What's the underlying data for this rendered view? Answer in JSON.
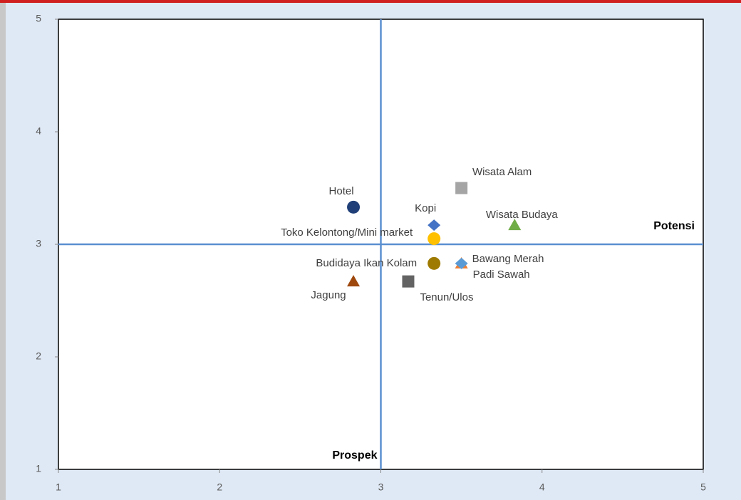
{
  "chart_data": {
    "type": "scatter",
    "xlim": [
      1,
      5
    ],
    "ylim": [
      1,
      5
    ],
    "xticks": [
      1,
      2,
      3,
      4,
      5
    ],
    "yticks": [
      1,
      2,
      3,
      4,
      5
    ],
    "hline": {
      "value": 3,
      "label": "Potensi",
      "color": "#5b8fd0"
    },
    "vline": {
      "value": 3,
      "label": "Prospek",
      "color": "#5b8fd0"
    },
    "series": [
      {
        "name": "Hotel",
        "color": "#203f78",
        "marker": "circle",
        "x": [
          2.83
        ],
        "values": [
          3.33
        ]
      },
      {
        "name": "Kopi",
        "color": "#4472c4",
        "marker": "diamond",
        "x": [
          3.33
        ],
        "values": [
          3.17
        ]
      },
      {
        "name": "Toko Kelontong/Mini market",
        "color": "#ffc000",
        "marker": "circle",
        "x": [
          3.33
        ],
        "values": [
          3.05
        ]
      },
      {
        "name": "Wisata Alam",
        "color": "#a5a5a5",
        "marker": "square",
        "x": [
          3.5
        ],
        "values": [
          3.5
        ]
      },
      {
        "name": "Wisata Budaya",
        "color": "#70ad47",
        "marker": "triangle",
        "x": [
          3.83
        ],
        "values": [
          3.17
        ]
      },
      {
        "name": "Budidaya Ikan Kolam",
        "color": "#9e7b00",
        "marker": "circle",
        "x": [
          3.33
        ],
        "values": [
          2.83
        ]
      },
      {
        "name": "Padi Sawah",
        "color": "#ed7d31",
        "marker": "triangle",
        "x": [
          3.5
        ],
        "values": [
          2.83
        ]
      },
      {
        "name": "Bawang Merah",
        "color": "#5b9bd5",
        "marker": "diamond",
        "x": [
          3.5
        ],
        "values": [
          2.83
        ]
      },
      {
        "name": "Jagung",
        "color": "#9e480e",
        "marker": "triangle",
        "x": [
          2.83
        ],
        "values": [
          2.67
        ]
      },
      {
        "name": "Tenun/Ulos",
        "color": "#636363",
        "marker": "square",
        "x": [
          3.17
        ],
        "values": [
          2.67
        ]
      }
    ]
  }
}
